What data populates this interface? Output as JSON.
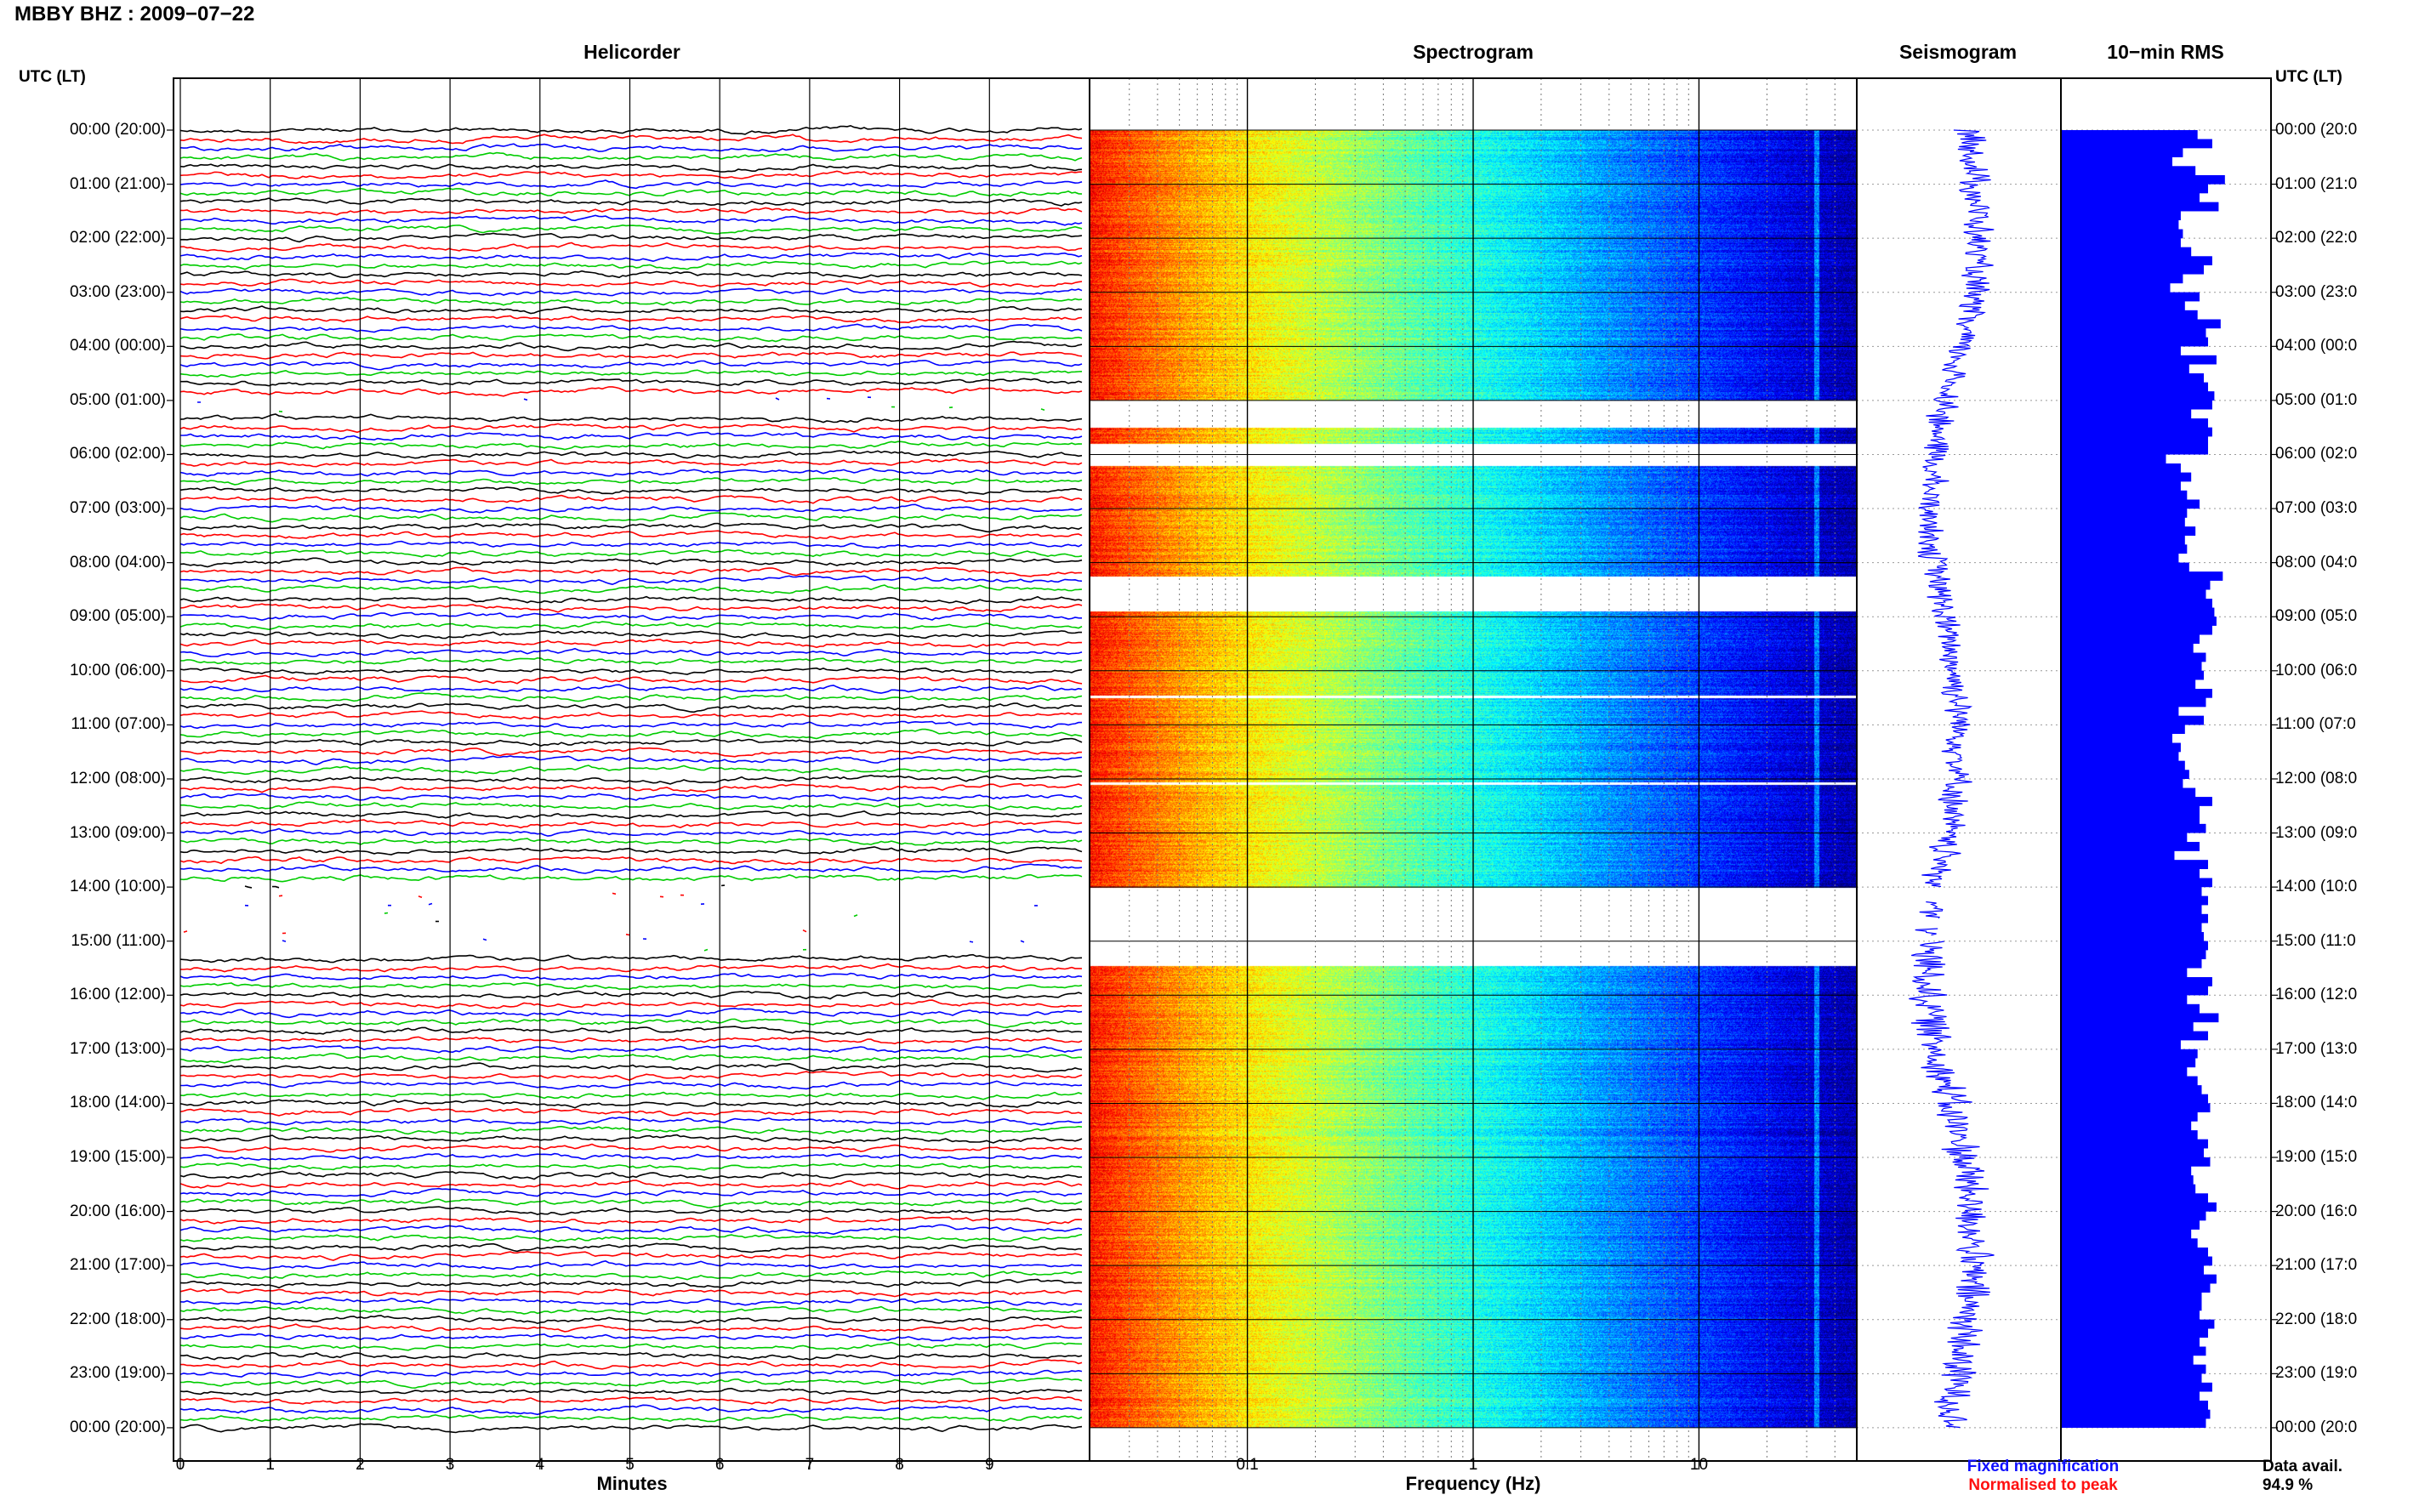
{
  "header": {
    "title": "MBBY BHZ : 2009−07−22"
  },
  "panels": {
    "helicorder": "Helicorder",
    "spectrogram": "Spectrogram",
    "seismogram": "Seismogram",
    "rms": "10−min RMS"
  },
  "axis_heads": {
    "left": "UTC (LT)",
    "right": "UTC (LT)"
  },
  "time_labels_left": [
    "00:00 (20:00)",
    "01:00 (21:00)",
    "02:00 (22:00)",
    "03:00 (23:00)",
    "04:00 (00:00)",
    "05:00 (01:00)",
    "06:00 (02:00)",
    "07:00 (03:00)",
    "08:00 (04:00)",
    "09:00 (05:00)",
    "10:00 (06:00)",
    "11:00 (07:00)",
    "12:00 (08:00)",
    "13:00 (09:00)",
    "14:00 (10:00)",
    "15:00 (11:00)",
    "16:00 (12:00)",
    "17:00 (13:00)",
    "18:00 (14:00)",
    "19:00 (15:00)",
    "20:00 (16:00)",
    "21:00 (17:00)",
    "22:00 (18:00)",
    "23:00 (19:00)",
    "00:00 (20:00)"
  ],
  "time_labels_right": [
    "00:00 (20:0",
    "01:00 (21:0",
    "02:00 (22:0",
    "03:00 (23:0",
    "04:00 (00:0",
    "05:00 (01:0",
    "06:00 (02:0",
    "07:00 (03:0",
    "08:00 (04:0",
    "09:00 (05:0",
    "10:00 (06:0",
    "11:00 (07:0",
    "12:00 (08:0",
    "13:00 (09:0",
    "14:00 (10:0",
    "15:00 (11:0",
    "16:00 (12:0",
    "17:00 (13:0",
    "18:00 (14:0",
    "19:00 (15:0",
    "20:00 (16:0",
    "21:00 (17:0",
    "22:00 (18:0",
    "23:00 (19:0",
    "00:00 (20:0"
  ],
  "helicorder_axis": {
    "label": "Minutes",
    "ticks": [
      "0",
      "1",
      "2",
      "3",
      "4",
      "5",
      "6",
      "7",
      "8",
      "9"
    ]
  },
  "spectrogram_axis": {
    "label": "Frequency (Hz)",
    "ticks": [
      "0.1",
      "1",
      "10"
    ]
  },
  "legend": {
    "fixed": "Fixed magnification",
    "normalised": "Normalised to peak",
    "fixed_color": "#1010ff",
    "normalised_color": "#ff1010"
  },
  "availability": {
    "label": "Data avail.",
    "value": "94.9 %"
  },
  "colors": {
    "trace_cycle": [
      "#000000",
      "#ff0000",
      "#0000ff",
      "#00cc00"
    ],
    "rms_fill": "#0000ff",
    "seismo": "#0000ff"
  },
  "chart_data": {
    "type": "heatmap",
    "title": "MBBY BHZ : 2009−07−22",
    "helicorder": {
      "xlabel": "Minutes",
      "xlim": [
        0,
        10
      ],
      "rows_per_hour": 6,
      "gap_utc_hours": [
        [
          5.0,
          5.3
        ],
        [
          14.0,
          15.25
        ]
      ]
    },
    "spectrogram": {
      "xlabel": "Frequency (Hz)",
      "xscale": "log",
      "xlim": [
        0.02,
        50
      ],
      "peak_frequency_hz": 33,
      "gap_utc_hours": [
        [
          5.0,
          5.5
        ],
        [
          5.8,
          6.2
        ],
        [
          8.25,
          8.9
        ],
        [
          10.45,
          10.5
        ],
        [
          12.05,
          12.1
        ],
        [
          14.0,
          15.45
        ]
      ]
    },
    "seismogram": {
      "gap_utc_hours": [
        [
          14.0,
          14.25
        ],
        [
          14.6,
          14.75
        ],
        [
          14.9,
          15.0
        ]
      ]
    },
    "rms_10min": {
      "ylabel": "UTC (LT)",
      "values": [
        0.65,
        0.72,
        0.58,
        0.53,
        0.64,
        0.78,
        0.7,
        0.66,
        0.75,
        0.57,
        0.56,
        0.58,
        0.57,
        0.62,
        0.72,
        0.68,
        0.58,
        0.52,
        0.66,
        0.59,
        0.65,
        0.76,
        0.69,
        0.7,
        0.57,
        0.74,
        0.61,
        0.68,
        0.7,
        0.73,
        0.72,
        0.62,
        0.7,
        0.72,
        0.7,
        0.7,
        0.5,
        0.57,
        0.62,
        0.57,
        0.6,
        0.66,
        0.6,
        0.59,
        0.64,
        0.59,
        0.6,
        0.56,
        0.61,
        0.77,
        0.71,
        0.69,
        0.72,
        0.73,
        0.74,
        0.72,
        0.66,
        0.63,
        0.69,
        0.67,
        0.68,
        0.64,
        0.72,
        0.69,
        0.56,
        0.68,
        0.59,
        0.53,
        0.57,
        0.56,
        0.59,
        0.61,
        0.58,
        0.64,
        0.72,
        0.66,
        0.66,
        0.69,
        0.6,
        0.66,
        0.54,
        0.7,
        0.66,
        0.72,
        0.67,
        0.7,
        0.67,
        0.7,
        0.67,
        0.68,
        0.7,
        0.69,
        0.67,
        0.6,
        0.72,
        0.7,
        0.6,
        0.66,
        0.75,
        0.63,
        0.7,
        0.57,
        0.65,
        0.64,
        0.6,
        0.65,
        0.67,
        0.7,
        0.71,
        0.65,
        0.62,
        0.65,
        0.7,
        0.68,
        0.71,
        0.62,
        0.63,
        0.64,
        0.7,
        0.74,
        0.69,
        0.66,
        0.62,
        0.65,
        0.7,
        0.72,
        0.68,
        0.74,
        0.71,
        0.67,
        0.67,
        0.66,
        0.73,
        0.7,
        0.66,
        0.69,
        0.63,
        0.69,
        0.67,
        0.72,
        0.66,
        0.7,
        0.71,
        0.69
      ]
    }
  }
}
